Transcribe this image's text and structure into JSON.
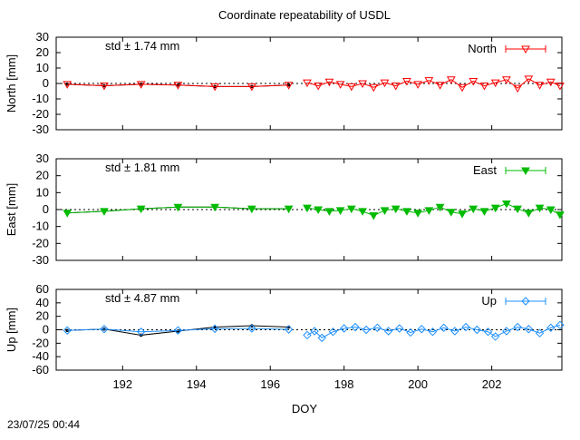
{
  "title": "Coordinate repeatability of USDL",
  "timestamp": "23/07/25 00:44",
  "xlabel": "DOY",
  "chart_data": [
    {
      "type": "line",
      "ylabel": "North [mm]",
      "legend": "North",
      "std_label": "std ± 1.74 mm",
      "color": "#ff0000",
      "marker": "triangle-down-open",
      "legend_placement": "top-right",
      "xlim": [
        190.2,
        203.9
      ],
      "ylim": [
        -30,
        30
      ],
      "yticks": [
        30,
        20,
        10,
        0,
        -10,
        -20,
        -30
      ],
      "xticks": [
        192,
        194,
        196,
        198,
        200,
        202
      ],
      "daily_x": [
        190.5,
        191.5,
        192.5,
        193.5,
        194.5,
        195.5,
        196.5
      ],
      "daily_y": [
        -0.5,
        -1.5,
        -0.5,
        -1.0,
        -2.0,
        -2.0,
        -1.0
      ],
      "daily_color": "#ff0000",
      "daily_marker": "triangle-down-open",
      "daily_ref_color": "#000000",
      "hourly": [
        {
          "x": 197.0,
          "y": 0.5
        },
        {
          "x": 197.3,
          "y": -1.5
        },
        {
          "x": 197.6,
          "y": 1.0
        },
        {
          "x": 197.9,
          "y": -0.5
        },
        {
          "x": 198.2,
          "y": -2.0
        },
        {
          "x": 198.5,
          "y": 0.0
        },
        {
          "x": 198.8,
          "y": -2.5
        },
        {
          "x": 199.1,
          "y": 0.5
        },
        {
          "x": 199.4,
          "y": -1.5
        },
        {
          "x": 199.7,
          "y": 1.5
        },
        {
          "x": 200.0,
          "y": -0.5
        },
        {
          "x": 200.3,
          "y": 2.0
        },
        {
          "x": 200.6,
          "y": -1.0
        },
        {
          "x": 200.9,
          "y": 2.5
        },
        {
          "x": 201.2,
          "y": -2.5
        },
        {
          "x": 201.5,
          "y": 1.5
        },
        {
          "x": 201.8,
          "y": -1.5
        },
        {
          "x": 202.1,
          "y": 0.5
        },
        {
          "x": 202.4,
          "y": 2.5
        },
        {
          "x": 202.7,
          "y": -3.0
        },
        {
          "x": 203.0,
          "y": 3.0
        },
        {
          "x": 203.3,
          "y": -1.0
        },
        {
          "x": 203.6,
          "y": 1.0
        },
        {
          "x": 203.85,
          "y": -1.5
        }
      ]
    },
    {
      "type": "line",
      "ylabel": "East [mm]",
      "legend": "East",
      "std_label": "std ± 1.81 mm",
      "color": "#00bb00",
      "marker": "triangle-down-filled",
      "legend_placement": "top-right",
      "xlim": [
        190.2,
        203.9
      ],
      "ylim": [
        -30,
        30
      ],
      "yticks": [
        30,
        20,
        10,
        0,
        -10,
        -20,
        -30
      ],
      "xticks": [
        192,
        194,
        196,
        198,
        200,
        202
      ],
      "daily_x": [
        190.5,
        191.5,
        192.5,
        193.5,
        194.5,
        195.5,
        196.5
      ],
      "daily_y": [
        -2.0,
        -1.0,
        0.5,
        1.5,
        1.5,
        0.5,
        0.5
      ],
      "daily_color": "#00bb00",
      "daily_marker": "triangle-down-filled",
      "daily_ref_color": "#000000",
      "hourly": [
        {
          "x": 197.0,
          "y": 1.0
        },
        {
          "x": 197.3,
          "y": 0.0
        },
        {
          "x": 197.6,
          "y": -1.0
        },
        {
          "x": 197.9,
          "y": -0.5
        },
        {
          "x": 198.2,
          "y": 0.5
        },
        {
          "x": 198.5,
          "y": -1.0
        },
        {
          "x": 198.8,
          "y": -3.5
        },
        {
          "x": 199.1,
          "y": -0.5
        },
        {
          "x": 199.4,
          "y": 0.5
        },
        {
          "x": 199.7,
          "y": -1.0
        },
        {
          "x": 200.0,
          "y": -2.0
        },
        {
          "x": 200.3,
          "y": -0.5
        },
        {
          "x": 200.6,
          "y": 1.5
        },
        {
          "x": 200.9,
          "y": -1.5
        },
        {
          "x": 201.2,
          "y": -2.5
        },
        {
          "x": 201.5,
          "y": 0.5
        },
        {
          "x": 201.8,
          "y": -1.0
        },
        {
          "x": 202.1,
          "y": 1.0
        },
        {
          "x": 202.4,
          "y": 3.5
        },
        {
          "x": 202.7,
          "y": 0.5
        },
        {
          "x": 203.0,
          "y": -2.0
        },
        {
          "x": 203.3,
          "y": 1.0
        },
        {
          "x": 203.6,
          "y": 0.0
        },
        {
          "x": 203.85,
          "y": -3.0
        }
      ]
    },
    {
      "type": "line",
      "ylabel": "Up [mm]",
      "legend": "Up",
      "std_label": "std ± 4.87 mm",
      "color": "#1e90ff",
      "marker": "diamond-open",
      "legend_placement": "top-right",
      "xlim": [
        190.2,
        203.9
      ],
      "ylim": [
        -60,
        60
      ],
      "yticks": [
        60,
        40,
        20,
        0,
        -20,
        -40,
        -60
      ],
      "xticks": [
        192,
        194,
        196,
        198,
        200,
        202
      ],
      "daily_x": [
        190.5,
        191.5,
        192.5,
        193.5,
        194.5,
        195.5,
        196.5
      ],
      "daily_y": [
        -1.0,
        1.0,
        -3.0,
        -1.0,
        1.5,
        2.0,
        0.5
      ],
      "daily_ref_y": [
        -1.0,
        1.0,
        -8.0,
        -2.0,
        4.0,
        6.0,
        4.0
      ],
      "daily_color": "#1e90ff",
      "daily_marker": "diamond-open",
      "daily_ref_color": "#000000",
      "hourly": [
        {
          "x": 197.0,
          "y": -8.0
        },
        {
          "x": 197.2,
          "y": -2.0
        },
        {
          "x": 197.4,
          "y": -12.0
        },
        {
          "x": 197.7,
          "y": -3.0
        },
        {
          "x": 198.0,
          "y": 2.0
        },
        {
          "x": 198.3,
          "y": 4.0
        },
        {
          "x": 198.6,
          "y": 0.0
        },
        {
          "x": 198.9,
          "y": 3.0
        },
        {
          "x": 199.2,
          "y": -2.0
        },
        {
          "x": 199.5,
          "y": 2.0
        },
        {
          "x": 199.8,
          "y": -4.0
        },
        {
          "x": 200.1,
          "y": 1.0
        },
        {
          "x": 200.4,
          "y": -3.0
        },
        {
          "x": 200.7,
          "y": 3.0
        },
        {
          "x": 201.0,
          "y": -2.0
        },
        {
          "x": 201.3,
          "y": 4.0
        },
        {
          "x": 201.6,
          "y": 0.0
        },
        {
          "x": 201.9,
          "y": -3.0
        },
        {
          "x": 202.1,
          "y": -10.0
        },
        {
          "x": 202.4,
          "y": -2.0
        },
        {
          "x": 202.7,
          "y": 4.0
        },
        {
          "x": 203.0,
          "y": 1.0
        },
        {
          "x": 203.3,
          "y": -5.0
        },
        {
          "x": 203.6,
          "y": 3.0
        },
        {
          "x": 203.85,
          "y": 7.0
        }
      ]
    }
  ]
}
